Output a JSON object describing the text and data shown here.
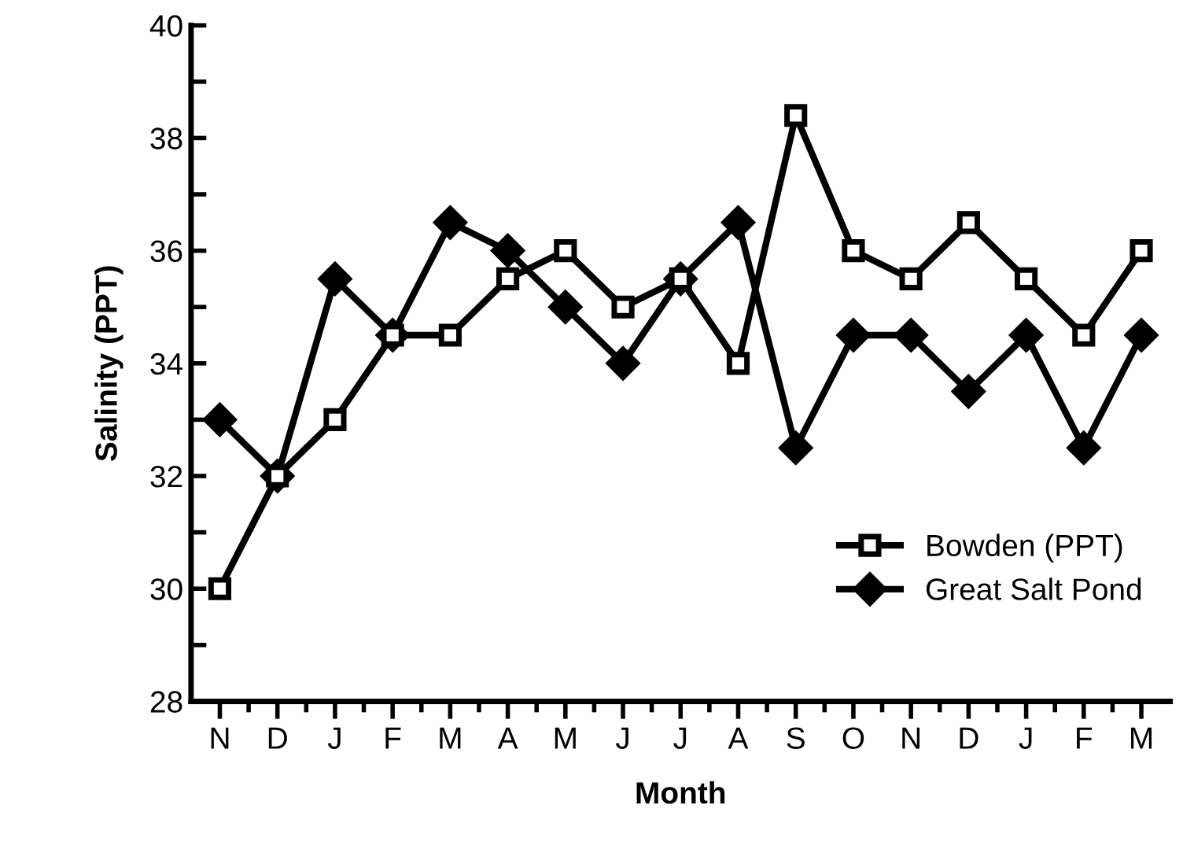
{
  "chart_data": {
    "type": "line",
    "xlabel": "Month",
    "ylabel": "Salinity (PPT)",
    "categories": [
      "N",
      "D",
      "J",
      "F",
      "M",
      "A",
      "M",
      "J",
      "J",
      "A",
      "S",
      "O",
      "N",
      "D",
      "J",
      "F",
      "M"
    ],
    "series": [
      {
        "name": "Bowden (PPT)",
        "color": "#000000",
        "marker": "square",
        "values": [
          30,
          32,
          33,
          34.5,
          34.5,
          35.5,
          36,
          35,
          35.5,
          34,
          38.4,
          36,
          35.5,
          36.5,
          35.5,
          34.5,
          36
        ]
      },
      {
        "name": "Great Salt Pond",
        "color": "#000000",
        "marker": "diamond",
        "values": [
          33,
          32,
          35.5,
          34.5,
          36.5,
          36,
          35,
          34,
          35.5,
          36.5,
          32.5,
          34.5,
          34.5,
          33.5,
          34.5,
          32.5,
          34.5
        ]
      }
    ],
    "ylim": [
      28,
      40
    ],
    "yticks": [
      28,
      {
        "value": 29,
        "label": null
      },
      30,
      {
        "value": 31,
        "label": null
      },
      32,
      {
        "value": 33,
        "label": null
      },
      34,
      {
        "value": 35,
        "label": null
      },
      36,
      {
        "value": 37,
        "label": null
      },
      38,
      {
        "value": 39,
        "label": null
      },
      40
    ],
    "grid": false,
    "legend": "bottom right",
    "line_style": "solid"
  }
}
